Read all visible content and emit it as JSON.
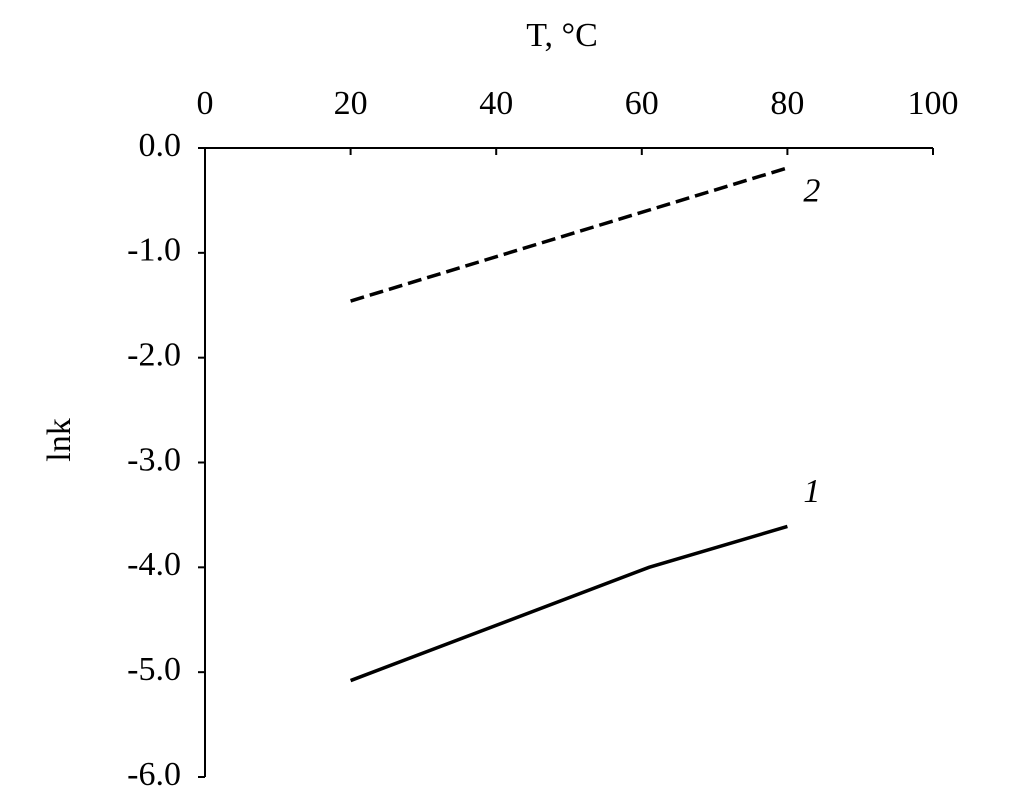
{
  "chart_data": {
    "type": "line",
    "x_label": "T, °C",
    "y_label": "lnk",
    "x_axis_position": "top",
    "xlim": [
      0,
      100
    ],
    "xticks": [
      0,
      20,
      40,
      60,
      80,
      100
    ],
    "ylim": [
      -6,
      0
    ],
    "yticks": [
      {
        "value": 0,
        "label": "0.0"
      },
      {
        "value": -1,
        "label": "-1.0"
      },
      {
        "value": -2,
        "label": "-2.0"
      },
      {
        "value": -3,
        "label": "-3.0"
      },
      {
        "value": -4,
        "label": "-4.0"
      },
      {
        "value": -5,
        "label": "-5.0"
      },
      {
        "value": -6,
        "label": "-6.0"
      }
    ],
    "grid": false,
    "series": [
      {
        "name": "1",
        "color": "#000000",
        "style": "solid",
        "x": [
          20,
          61,
          80
        ],
        "values": [
          -5.08,
          -4.0,
          -3.61
        ]
      },
      {
        "name": "2",
        "color": "#000000",
        "style": "dashed",
        "x": [
          20,
          80
        ],
        "values": [
          -1.46,
          -0.19
        ]
      }
    ]
  }
}
